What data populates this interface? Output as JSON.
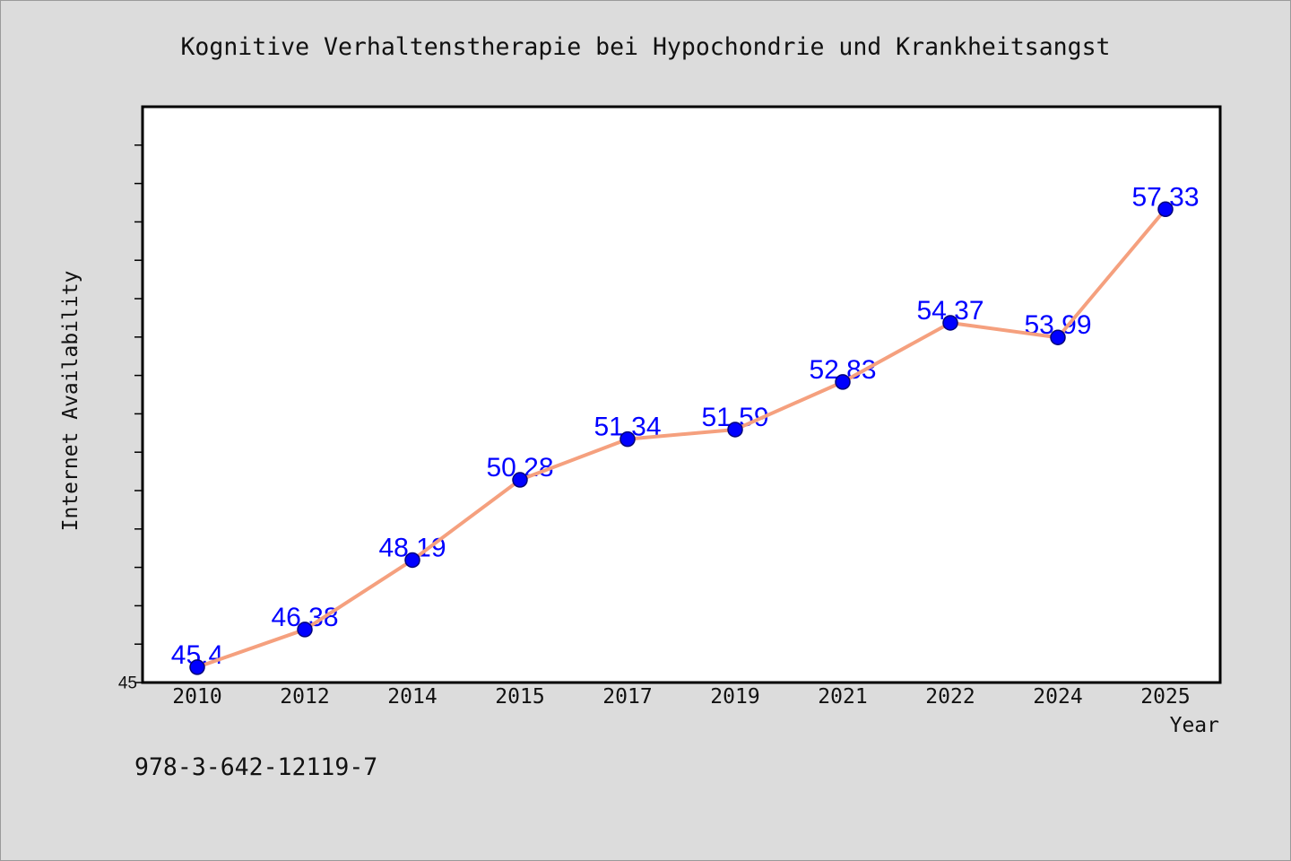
{
  "figure": {
    "footer_text": "978-3-642-12119-7",
    "colors": {
      "background": "#dcdcdc",
      "border": "#9a9a9a"
    }
  },
  "chart_data": {
    "type": "line",
    "title": "Kognitive Verhaltenstherapie bei Hypochondrie und Krankheitsangst",
    "xlabel": "Year",
    "ylabel": "Internet Availability",
    "categories": [
      "2010",
      "2012",
      "2014",
      "2015",
      "2017",
      "2019",
      "2021",
      "2022",
      "2024",
      "2025"
    ],
    "series": [
      {
        "values": [
          45.4,
          46.38,
          48.19,
          50.28,
          51.34,
          51.59,
          52.83,
          54.37,
          53.99,
          57.33
        ],
        "data_labels": [
          "45.4",
          "46.38",
          "48.19",
          "50.28",
          "51.34",
          "51.59",
          "52.83",
          "54.37",
          "53.99",
          "57.33"
        ],
        "line_color": "#f5a07e",
        "marker_color": "#0000ff",
        "marker_edge_color": "#00007a",
        "label_color": "#0000ff"
      }
    ],
    "ylim": [
      45,
      60
    ],
    "yticks": [
      45,
      46,
      47,
      48,
      49,
      50,
      51,
      52,
      53,
      54,
      55,
      56,
      57,
      58,
      59
    ],
    "ytick_labels": [
      {
        "value": 45,
        "text": "45"
      }
    ],
    "plot_background": "#ffffff",
    "axis_color": "#000000",
    "grid": false,
    "show_legend": false
  }
}
